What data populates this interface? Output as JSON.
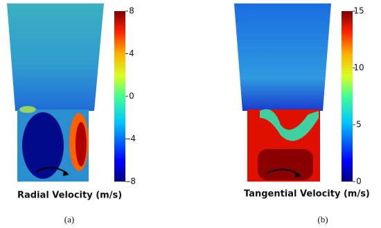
{
  "panels": [
    {
      "label": "Radial Velocity (m/s)",
      "caption": "(a)",
      "colorbar": {
        "lim": [
          -8,
          8
        ],
        "ticks": [
          8,
          4,
          0,
          -4,
          -8
        ]
      }
    },
    {
      "label": "Tangential Velocity (m/s)",
      "caption": "(b)",
      "colorbar": {
        "lim": [
          0,
          15
        ],
        "ticks": [
          15,
          10,
          5,
          0
        ]
      }
    }
  ]
}
